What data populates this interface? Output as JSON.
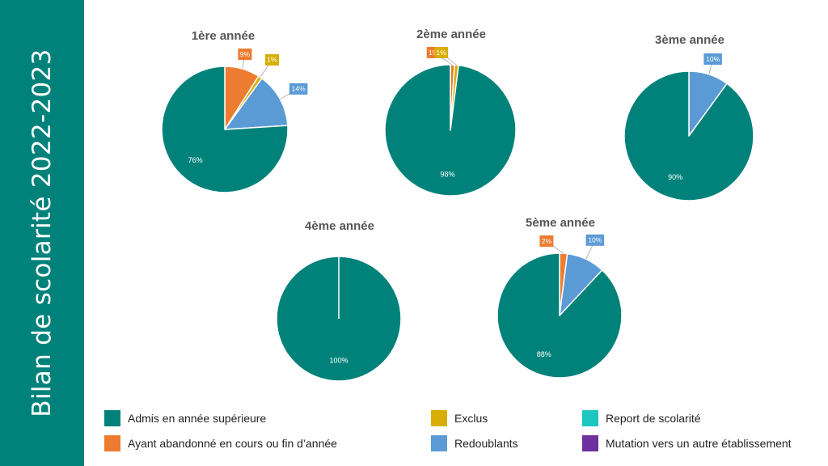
{
  "slide": {
    "title": "Bilan de scolarité 2022-2023"
  },
  "colors": {
    "admis": "#00827a",
    "abandon": "#ec7c30",
    "exclus": "#d8ae06",
    "redoublants": "#5b9bd5",
    "report": "#1bc7c0",
    "mutation": "#7030a0",
    "sidebar": "#00827a"
  },
  "legend": [
    {
      "label": "Admis en année supérieure",
      "color": "#00827a"
    },
    {
      "label": "Exclus",
      "color": "#d8ae06"
    },
    {
      "label": "Report de scolarité",
      "color": "#1bc7c0"
    },
    {
      "label": "Ayant abandonné en cours ou fin d’année",
      "color": "#ec7c30"
    },
    {
      "label": "Redoublants",
      "color": "#5b9bd5"
    },
    {
      "label": "Mutation vers un autre établissement",
      "color": "#7030a0"
    }
  ],
  "chart_data": [
    {
      "type": "pie",
      "title": "1ère année",
      "slices": [
        {
          "category": "Ayant abandonné en cours ou fin d’année",
          "value": 9,
          "label": "9%",
          "color": "#ec7c30"
        },
        {
          "category": "Exclus",
          "value": 1,
          "label": "1%",
          "color": "#d8ae06"
        },
        {
          "category": "Redoublants",
          "value": 14,
          "label": "14%",
          "color": "#5b9bd5"
        },
        {
          "category": "Admis en année supérieure",
          "value": 76,
          "label": "76%",
          "color": "#00827a"
        }
      ]
    },
    {
      "type": "pie",
      "title": "2ème année",
      "slices": [
        {
          "category": "Ayant abandonné en cours ou fin d’année",
          "value": 1,
          "label": "1%",
          "color": "#ec7c30"
        },
        {
          "category": "Exclus",
          "value": 1,
          "label": "1%",
          "color": "#d8ae06"
        },
        {
          "category": "Admis en année supérieure",
          "value": 98,
          "label": "98%",
          "color": "#00827a"
        }
      ]
    },
    {
      "type": "pie",
      "title": "3ème année",
      "slices": [
        {
          "category": "Redoublants",
          "value": 10,
          "label": "10%",
          "color": "#5b9bd5"
        },
        {
          "category": "Admis en année supérieure",
          "value": 90,
          "label": "90%",
          "color": "#00827a"
        }
      ]
    },
    {
      "type": "pie",
      "title": "4ème année",
      "slices": [
        {
          "category": "Admis en année supérieure",
          "value": 100,
          "label": "100%",
          "color": "#00827a"
        }
      ]
    },
    {
      "type": "pie",
      "title": "5ème année",
      "slices": [
        {
          "category": "Ayant abandonné en cours ou fin d’année",
          "value": 2,
          "label": "2%",
          "color": "#ec7c30"
        },
        {
          "category": "Redoublants",
          "value": 10,
          "label": "10%",
          "color": "#5b9bd5"
        },
        {
          "category": "Admis en année supérieure",
          "value": 88,
          "label": "88%",
          "color": "#00827a"
        }
      ]
    }
  ]
}
